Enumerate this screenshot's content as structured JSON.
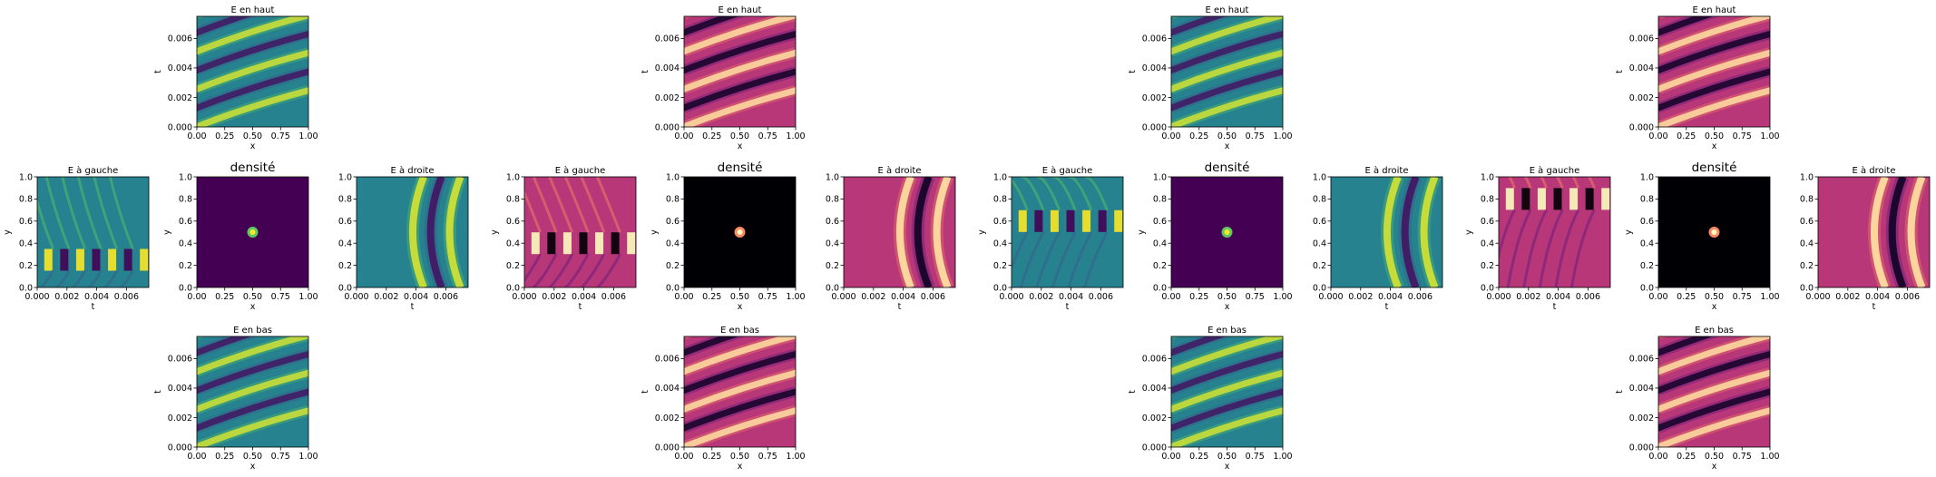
{
  "figure": {
    "suptitle": "",
    "colors": {
      "teal_base": "#26828e",
      "magma_base": "#b73779",
      "viridis_dark": "#440154",
      "magma_dark": "#000004",
      "viridis_bright": "#fde725",
      "magma_bright": "#fcfdbf"
    }
  },
  "chart_data": [
    {
      "type": "heatmap",
      "group": 1,
      "position": "top",
      "title": "E en haut",
      "colormap": "viridis",
      "xlabel": "x",
      "ylabel": "t",
      "xlim": [
        0,
        1
      ],
      "ylim": [
        0,
        0.0075
      ],
      "xticks": [
        "0.00",
        "0.25",
        "0.50",
        "0.75",
        "1.00"
      ],
      "yticks": [
        "0.000",
        "0.002",
        "0.004",
        "0.006"
      ]
    },
    {
      "type": "heatmap",
      "group": 1,
      "position": "left",
      "title": "E à gauche",
      "colormap": "viridis",
      "xlabel": "t",
      "ylabel": "y",
      "xlim": [
        0,
        0.0075
      ],
      "ylim": [
        0,
        1
      ],
      "xticks": [
        "0.000",
        "0.002",
        "0.004",
        "0.006"
      ],
      "yticks": [
        "0.0",
        "0.2",
        "0.4",
        "0.6",
        "0.8",
        "1.0"
      ]
    },
    {
      "type": "heatmap",
      "group": 1,
      "position": "center",
      "title": "densité",
      "colormap": "viridis",
      "xlabel": "x",
      "ylabel": "y",
      "xlim": [
        0,
        1
      ],
      "ylim": [
        0,
        1
      ],
      "xticks": [
        "0.00",
        "0.25",
        "0.50",
        "0.75",
        "1.00"
      ],
      "yticks": [
        "0.0",
        "0.2",
        "0.4",
        "0.6",
        "0.8",
        "1.0"
      ],
      "source": {
        "x": 0.5,
        "y": 0.5
      }
    },
    {
      "type": "heatmap",
      "group": 1,
      "position": "right",
      "title": "E à droite",
      "colormap": "viridis",
      "xlabel": "t",
      "ylabel": "",
      "xlim": [
        0,
        0.0075
      ],
      "ylim": [
        0,
        1
      ],
      "xticks": [
        "0.000",
        "0.002",
        "0.004",
        "0.006"
      ],
      "yticks": [
        "0.0",
        "0.2",
        "0.4",
        "0.6",
        "0.8",
        "1.0"
      ]
    },
    {
      "type": "heatmap",
      "group": 1,
      "position": "bottom",
      "title": "E en bas",
      "colormap": "viridis",
      "xlabel": "x",
      "ylabel": "t",
      "xlim": [
        0,
        1
      ],
      "ylim": [
        0,
        0.0075
      ],
      "xticks": [
        "0.00",
        "0.25",
        "0.50",
        "0.75",
        "1.00"
      ],
      "yticks": [
        "0.000",
        "0.002",
        "0.004",
        "0.006"
      ]
    },
    {
      "type": "heatmap",
      "group": 2,
      "position": "top",
      "title": "E en haut",
      "colormap": "magma",
      "xlabel": "x",
      "ylabel": "t",
      "xlim": [
        0,
        1
      ],
      "ylim": [
        0,
        0.0075
      ],
      "xticks": [
        "0.00",
        "0.25",
        "0.50",
        "0.75",
        "1.00"
      ],
      "yticks": [
        "0.000",
        "0.002",
        "0.004",
        "0.006"
      ]
    },
    {
      "type": "heatmap",
      "group": 2,
      "position": "left",
      "title": "E à gauche",
      "colormap": "magma",
      "xlabel": "t",
      "ylabel": "y",
      "xlim": [
        0,
        0.0075
      ],
      "ylim": [
        0,
        1
      ],
      "xticks": [
        "0.000",
        "0.002",
        "0.004",
        "0.006"
      ],
      "yticks": [
        "0.0",
        "0.2",
        "0.4",
        "0.6",
        "0.8",
        "1.0"
      ]
    },
    {
      "type": "heatmap",
      "group": 2,
      "position": "center",
      "title": "densité",
      "colormap": "magma",
      "xlabel": "x",
      "ylabel": "y",
      "xlim": [
        0,
        1
      ],
      "ylim": [
        0,
        1
      ],
      "xticks": [
        "0.00",
        "0.25",
        "0.50",
        "0.75",
        "1.00"
      ],
      "yticks": [
        "0.0",
        "0.2",
        "0.4",
        "0.6",
        "0.8",
        "1.0"
      ],
      "source": {
        "x": 0.5,
        "y": 0.5
      }
    },
    {
      "type": "heatmap",
      "group": 2,
      "position": "right",
      "title": "E à droite",
      "colormap": "magma",
      "xlabel": "t",
      "ylabel": "",
      "xlim": [
        0,
        0.0075
      ],
      "ylim": [
        0,
        1
      ],
      "xticks": [
        "0.000",
        "0.002",
        "0.004",
        "0.006"
      ],
      "yticks": [
        "0.0",
        "0.2",
        "0.4",
        "0.6",
        "0.8",
        "1.0"
      ]
    },
    {
      "type": "heatmap",
      "group": 2,
      "position": "bottom",
      "title": "E en bas",
      "colormap": "magma",
      "xlabel": "x",
      "ylabel": "t",
      "xlim": [
        0,
        1
      ],
      "ylim": [
        0,
        0.0075
      ],
      "xticks": [
        "0.00",
        "0.25",
        "0.50",
        "0.75",
        "1.00"
      ],
      "yticks": [
        "0.000",
        "0.002",
        "0.004",
        "0.006"
      ]
    },
    {
      "type": "heatmap",
      "group": 3,
      "position": "top",
      "title": "E en haut",
      "colormap": "viridis",
      "xlabel": "x",
      "ylabel": "t",
      "xlim": [
        0,
        1
      ],
      "ylim": [
        0,
        0.0075
      ],
      "xticks": [
        "0.00",
        "0.25",
        "0.50",
        "0.75",
        "1.00"
      ],
      "yticks": [
        "0.000",
        "0.002",
        "0.004",
        "0.006"
      ]
    },
    {
      "type": "heatmap",
      "group": 3,
      "position": "left",
      "title": "E à gauche",
      "colormap": "viridis",
      "xlabel": "t",
      "ylabel": "y",
      "xlim": [
        0,
        0.0075
      ],
      "ylim": [
        0,
        1
      ],
      "xticks": [
        "0.000",
        "0.002",
        "0.004",
        "0.006"
      ],
      "yticks": [
        "0.0",
        "0.2",
        "0.4",
        "0.6",
        "0.8",
        "1.0"
      ]
    },
    {
      "type": "heatmap",
      "group": 3,
      "position": "center",
      "title": "densité",
      "colormap": "viridis",
      "xlabel": "x",
      "ylabel": "y",
      "xlim": [
        0,
        1
      ],
      "ylim": [
        0,
        1
      ],
      "xticks": [
        "0.00",
        "0.25",
        "0.50",
        "0.75",
        "1.00"
      ],
      "yticks": [
        "0.0",
        "0.2",
        "0.4",
        "0.6",
        "0.8",
        "1.0"
      ],
      "source": {
        "x": 0.5,
        "y": 0.5
      }
    },
    {
      "type": "heatmap",
      "group": 3,
      "position": "right",
      "title": "E à droite",
      "colormap": "viridis",
      "xlabel": "t",
      "ylabel": "",
      "xlim": [
        0,
        0.0075
      ],
      "ylim": [
        0,
        1
      ],
      "xticks": [
        "0.000",
        "0.002",
        "0.004",
        "0.006"
      ],
      "yticks": [
        "0.0",
        "0.2",
        "0.4",
        "0.6",
        "0.8",
        "1.0"
      ]
    },
    {
      "type": "heatmap",
      "group": 3,
      "position": "bottom",
      "title": "E en bas",
      "colormap": "viridis",
      "xlabel": "x",
      "ylabel": "t",
      "xlim": [
        0,
        1
      ],
      "ylim": [
        0,
        0.0075
      ],
      "xticks": [
        "0.00",
        "0.25",
        "0.50",
        "0.75",
        "1.00"
      ],
      "yticks": [
        "0.000",
        "0.002",
        "0.004",
        "0.006"
      ]
    },
    {
      "type": "heatmap",
      "group": 4,
      "position": "top",
      "title": "E en haut",
      "colormap": "magma",
      "xlabel": "x",
      "ylabel": "t",
      "xlim": [
        0,
        1
      ],
      "ylim": [
        0,
        0.0075
      ],
      "xticks": [
        "0.00",
        "0.25",
        "0.50",
        "0.75",
        "1.00"
      ],
      "yticks": [
        "0.000",
        "0.002",
        "0.004",
        "0.006"
      ]
    },
    {
      "type": "heatmap",
      "group": 4,
      "position": "left",
      "title": "E à gauche",
      "colormap": "magma",
      "xlabel": "t",
      "ylabel": "y",
      "xlim": [
        0,
        0.0075
      ],
      "ylim": [
        0,
        1
      ],
      "xticks": [
        "0.000",
        "0.002",
        "0.004",
        "0.006"
      ],
      "yticks": [
        "0.0",
        "0.2",
        "0.4",
        "0.6",
        "0.8",
        "1.0"
      ]
    },
    {
      "type": "heatmap",
      "group": 4,
      "position": "center",
      "title": "densité",
      "colormap": "magma",
      "xlabel": "x",
      "ylabel": "y",
      "xlim": [
        0,
        1
      ],
      "ylim": [
        0,
        1
      ],
      "xticks": [
        "0.00",
        "0.25",
        "0.50",
        "0.75",
        "1.00"
      ],
      "yticks": [
        "0.0",
        "0.2",
        "0.4",
        "0.6",
        "0.8",
        "1.0"
      ],
      "source": {
        "x": 0.5,
        "y": 0.5
      }
    },
    {
      "type": "heatmap",
      "group": 4,
      "position": "right",
      "title": "E à droite",
      "colormap": "magma",
      "xlabel": "t",
      "ylabel": "",
      "xlim": [
        0,
        0.0075
      ],
      "ylim": [
        0,
        1
      ],
      "xticks": [
        "0.000",
        "0.002",
        "0.004",
        "0.006"
      ],
      "yticks": [
        "0.0",
        "0.2",
        "0.4",
        "0.6",
        "0.8",
        "1.0"
      ]
    },
    {
      "type": "heatmap",
      "group": 4,
      "position": "bottom",
      "title": "E en bas",
      "colormap": "magma",
      "xlabel": "x",
      "ylabel": "t",
      "xlim": [
        0,
        1
      ],
      "ylim": [
        0,
        0.0075
      ],
      "xticks": [
        "0.00",
        "0.25",
        "0.50",
        "0.75",
        "1.00"
      ],
      "yticks": [
        "0.000",
        "0.002",
        "0.004",
        "0.006"
      ]
    }
  ]
}
